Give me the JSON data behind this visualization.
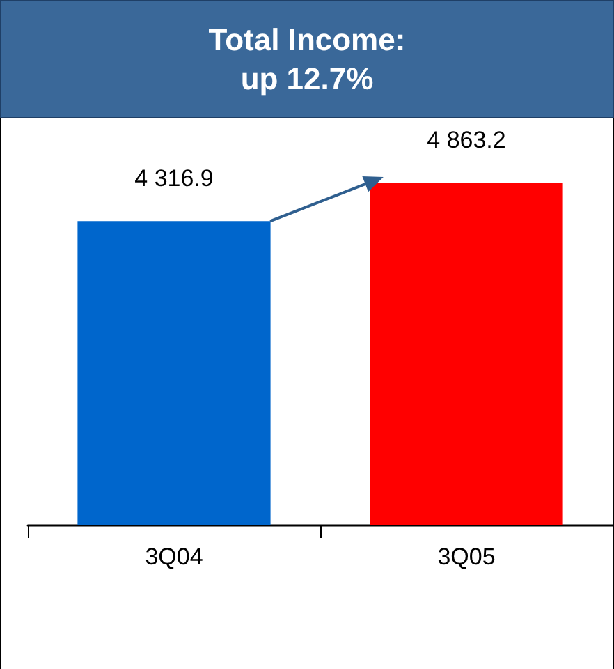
{
  "chart_data": {
    "type": "bar",
    "title": "Total Income:\nup 12.7%",
    "categories": [
      "3Q04",
      "3Q05"
    ],
    "values": [
      4316.9,
      4863.2
    ],
    "colors": [
      "#0066cc",
      "#ff0000"
    ],
    "value_labels": [
      "4 316.9",
      "4 863.2"
    ]
  }
}
